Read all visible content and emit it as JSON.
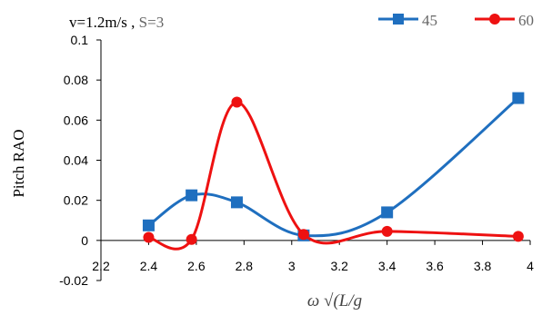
{
  "chart_data": {
    "type": "line",
    "annotation": {
      "velocity": "v=1.2m/s",
      "separator": " , ",
      "sea_state": "S=3"
    },
    "xlabel": "ω √(L/g",
    "ylabel": "Pitch RAO",
    "xlim": [
      2.2,
      4.0
    ],
    "ylim": [
      -0.02,
      0.1
    ],
    "x_ticks": [
      "2.2",
      "2.4",
      "2.6",
      "2.8",
      "3",
      "3.2",
      "3.4",
      "3.6",
      "3.8",
      "4"
    ],
    "x_tick_values": [
      2.2,
      2.4,
      2.6,
      2.8,
      3.0,
      3.2,
      3.4,
      3.6,
      3.8,
      4.0
    ],
    "y_ticks": [
      "-0.02",
      "0",
      "0.02",
      "0.04",
      "0.06",
      "0.08",
      "0.1"
    ],
    "y_tick_values": [
      -0.02,
      0,
      0.02,
      0.04,
      0.06,
      0.08,
      0.1
    ],
    "grid": false,
    "legend_position": "top-right",
    "series": [
      {
        "name": "45",
        "color": "#1f6fbf",
        "marker": "square",
        "x": [
          2.4,
          2.58,
          2.77,
          3.05,
          3.4,
          3.95
        ],
        "y": [
          0.0075,
          0.0225,
          0.019,
          0.0025,
          0.014,
          0.071
        ]
      },
      {
        "name": "60",
        "color": "#ee1111",
        "marker": "circle",
        "x": [
          2.4,
          2.58,
          2.77,
          3.05,
          3.4,
          3.95
        ],
        "y": [
          0.0015,
          0.0005,
          0.069,
          0.003,
          0.0045,
          0.002
        ]
      }
    ]
  }
}
